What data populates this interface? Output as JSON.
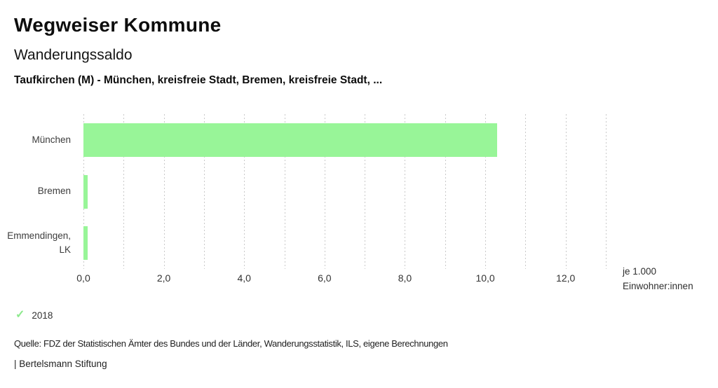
{
  "header": {
    "title": "Wegweiser Kommune",
    "subtitle": "Wanderungssaldo",
    "selection": "Taufkirchen (M) - München, kreisfreie Stadt, Bremen, kreisfreie Stadt, ..."
  },
  "chart_data": {
    "type": "bar",
    "orientation": "horizontal",
    "title": "Wanderungssaldo",
    "subtitle": "Taufkirchen (M) - München, kreisfreie Stadt, Bremen, kreisfreie Stadt, ...",
    "categories": [
      "München",
      "Bremen",
      "Emmendingen, LK"
    ],
    "series": [
      {
        "name": "2018",
        "values": [
          10.3,
          0.1,
          0.1
        ]
      }
    ],
    "xlim": [
      0,
      13
    ],
    "grid_step": 1,
    "tick_step": 2,
    "tick_labels": [
      "0,0",
      "2,0",
      "4,0",
      "6,0",
      "8,0",
      "10,0",
      "12,0"
    ],
    "unit_label_lines": [
      "je 1.000",
      "Einwohner:innen"
    ],
    "grid": true,
    "legend_position": "bottom-left",
    "bar_color": "#98f598",
    "grid_color": "#c9c9c9"
  },
  "legend": {
    "check_icon": "✓",
    "check_color": "#8de98d",
    "label": "2018"
  },
  "footer": {
    "source": "Quelle: FDZ der Statistischen Ämter des Bundes und der Länder, Wanderungsstatistik, ILS, eigene Berechnungen",
    "attribution": "| Bertelsmann Stiftung"
  }
}
